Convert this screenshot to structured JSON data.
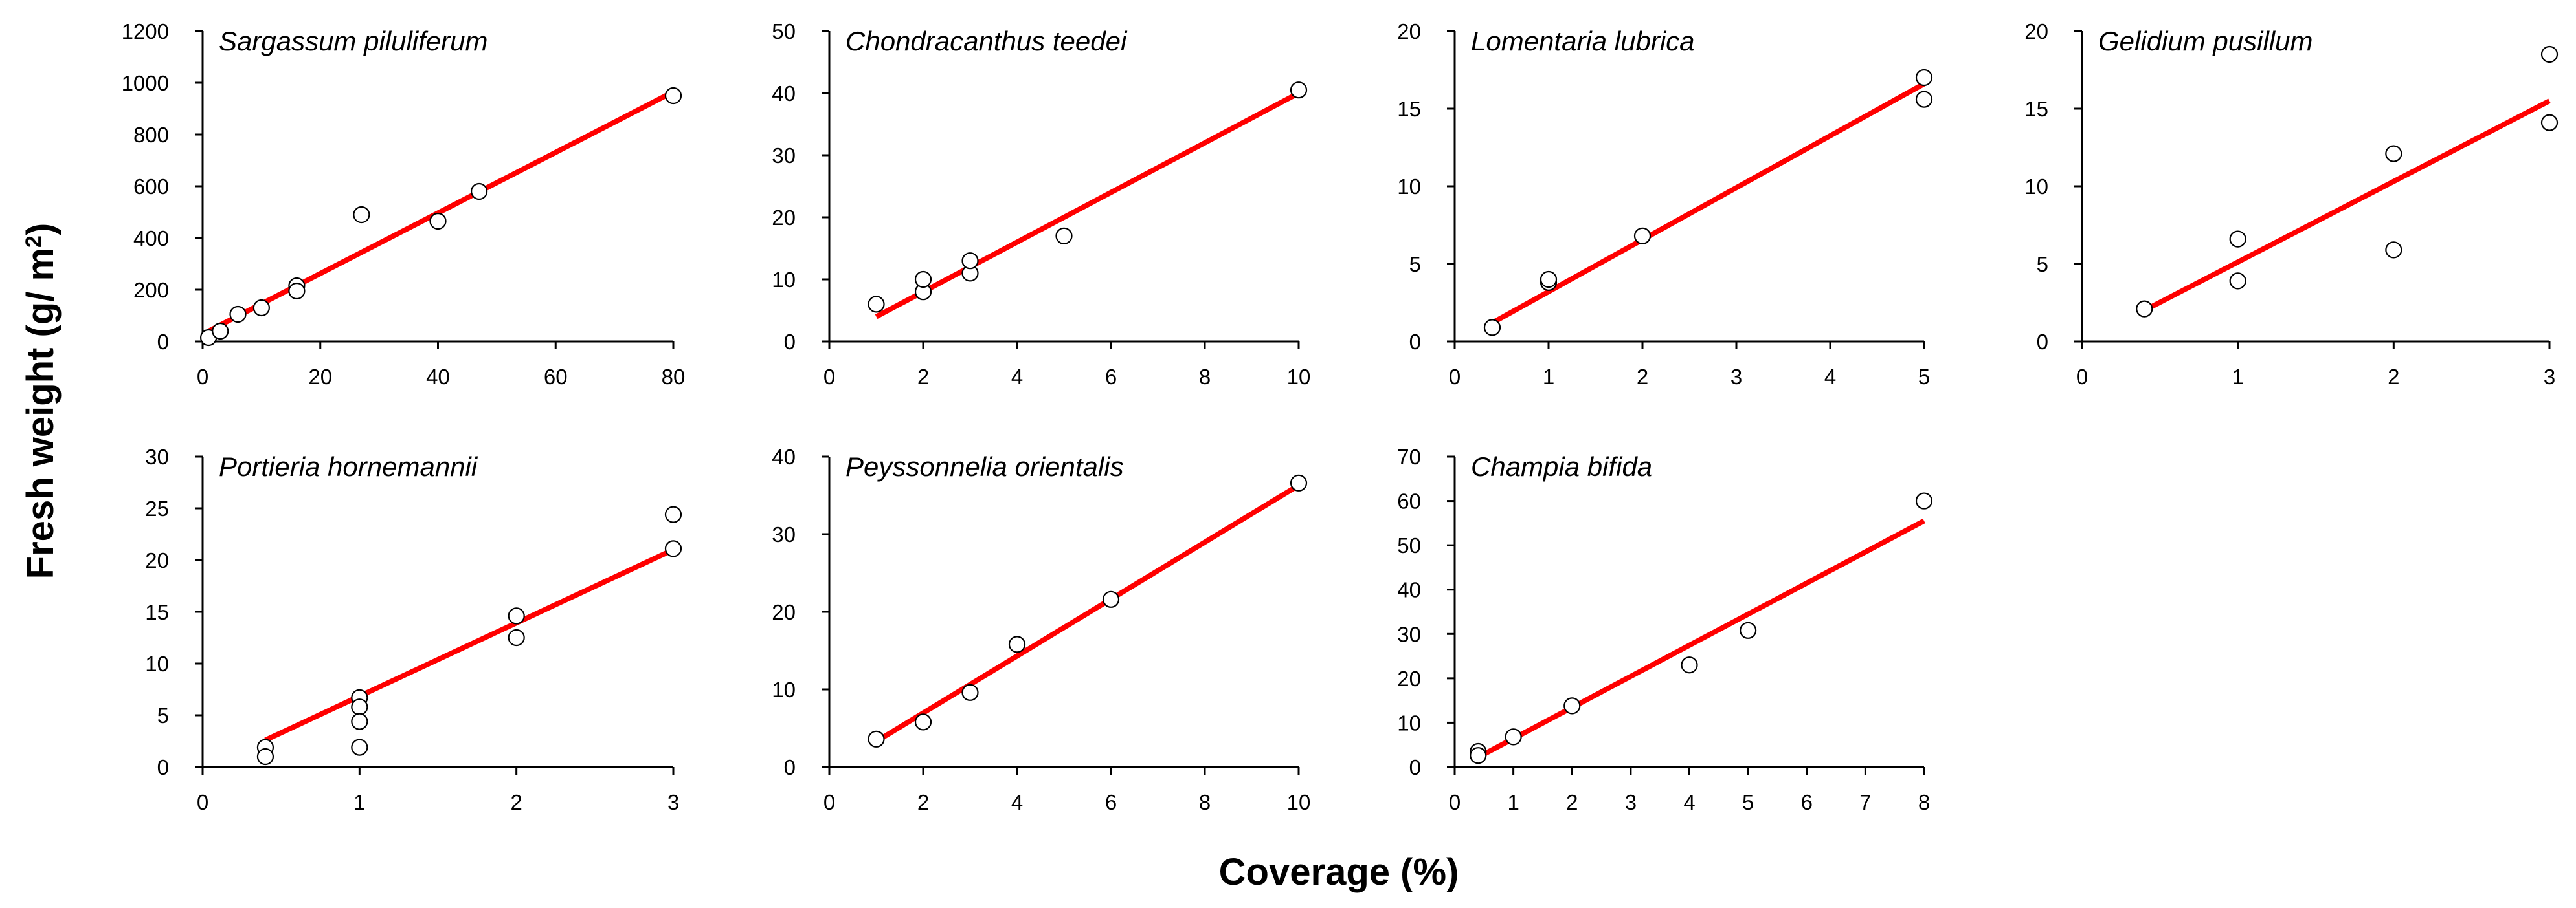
{
  "figure": {
    "ylabel_main": "Fresh weight (g/ m",
    "ylabel_sup": "2",
    "ylabel_close": ")",
    "xlabel": "Coverage (%)"
  },
  "chart_data": [
    {
      "type": "scatter",
      "title": "Sargassum piluliferum",
      "xlim": [
        0,
        80
      ],
      "xticks": [
        0,
        20,
        40,
        60,
        80
      ],
      "ylim": [
        0,
        1200
      ],
      "yticks": [
        0,
        200,
        400,
        600,
        800,
        1000,
        1200
      ],
      "points": [
        [
          1,
          15
        ],
        [
          3,
          40
        ],
        [
          6,
          105
        ],
        [
          10,
          130
        ],
        [
          16,
          215
        ],
        [
          16,
          195
        ],
        [
          27,
          490
        ],
        [
          40,
          465
        ],
        [
          47,
          580
        ],
        [
          80,
          950
        ]
      ],
      "fit_line": [
        [
          1,
          40
        ],
        [
          80,
          965
        ]
      ],
      "fit_color": "#ff0000"
    },
    {
      "type": "scatter",
      "title": "Chondracanthus teedei",
      "xlim": [
        0,
        10
      ],
      "xticks": [
        0,
        2,
        4,
        6,
        8,
        10
      ],
      "ylim": [
        0,
        50
      ],
      "yticks": [
        0,
        10,
        20,
        30,
        40,
        50
      ],
      "points": [
        [
          1,
          6
        ],
        [
          2,
          8
        ],
        [
          2,
          10
        ],
        [
          3,
          11
        ],
        [
          3,
          13
        ],
        [
          5,
          17
        ],
        [
          10,
          40.5
        ]
      ],
      "fit_line": [
        [
          1,
          4
        ],
        [
          10,
          40
        ]
      ],
      "fit_color": "#ff0000"
    },
    {
      "type": "scatter",
      "title": "Lomentaria lubrica",
      "xlim": [
        0,
        5
      ],
      "xticks": [
        0,
        1,
        2,
        3,
        4,
        5
      ],
      "ylim": [
        0,
        20
      ],
      "yticks": [
        0,
        5,
        10,
        15,
        20
      ],
      "points": [
        [
          0.4,
          0.9
        ],
        [
          1,
          3.8
        ],
        [
          1,
          4.0
        ],
        [
          2,
          6.8
        ],
        [
          5,
          17
        ],
        [
          5,
          15.6
        ]
      ],
      "fit_line": [
        [
          0.4,
          1.2
        ],
        [
          5,
          16.6
        ]
      ],
      "fit_color": "#ff0000"
    },
    {
      "type": "scatter",
      "title": "Gelidium pusillum",
      "xlim": [
        0,
        3
      ],
      "xticks": [
        0,
        1,
        2,
        3
      ],
      "ylim": [
        0,
        20
      ],
      "yticks": [
        0,
        5,
        10,
        15,
        20
      ],
      "points": [
        [
          0.4,
          2.1
        ],
        [
          1,
          6.6
        ],
        [
          1,
          3.9
        ],
        [
          2,
          12.1
        ],
        [
          2,
          5.9
        ],
        [
          3,
          18.5
        ],
        [
          3,
          14.1
        ]
      ],
      "fit_line": [
        [
          0.4,
          2.0
        ],
        [
          3,
          15.5
        ]
      ],
      "fit_color": "#ff0000"
    },
    {
      "type": "scatter",
      "title": "Portieria hornemannii",
      "xlim": [
        0,
        3
      ],
      "xticks": [
        0,
        1,
        2,
        3
      ],
      "ylim": [
        0,
        30
      ],
      "yticks": [
        0,
        5,
        10,
        15,
        20,
        25,
        30
      ],
      "points": [
        [
          0.4,
          1.9
        ],
        [
          0.4,
          1.0
        ],
        [
          1,
          6.7
        ],
        [
          1,
          5.8
        ],
        [
          1,
          4.4
        ],
        [
          1,
          1.9
        ],
        [
          2,
          14.6
        ],
        [
          2,
          12.5
        ],
        [
          3,
          24.4
        ],
        [
          3,
          21.1
        ]
      ],
      "fit_line": [
        [
          0.4,
          2.6
        ],
        [
          3,
          21.0
        ]
      ],
      "fit_color": "#ff0000"
    },
    {
      "type": "scatter",
      "title": "Peyssonnelia orientalis",
      "xlim": [
        0,
        10
      ],
      "xticks": [
        0,
        2,
        4,
        6,
        8,
        10
      ],
      "ylim": [
        0,
        40
      ],
      "yticks": [
        0,
        10,
        20,
        30,
        40
      ],
      "points": [
        [
          1,
          3.6
        ],
        [
          2,
          5.8
        ],
        [
          3,
          9.6
        ],
        [
          4,
          15.8
        ],
        [
          6,
          21.6
        ],
        [
          10,
          36.6
        ]
      ],
      "fit_line": [
        [
          1,
          3.3
        ],
        [
          10,
          36.3
        ]
      ],
      "fit_color": "#ff0000"
    },
    {
      "type": "scatter",
      "title": "Champia bifida",
      "xlim": [
        0,
        8
      ],
      "xticks": [
        0,
        1,
        2,
        3,
        4,
        5,
        6,
        7,
        8
      ],
      "ylim": [
        0,
        70
      ],
      "yticks": [
        0,
        10,
        20,
        30,
        40,
        50,
        60,
        70
      ],
      "points": [
        [
          0.4,
          3.5
        ],
        [
          0.4,
          2.6
        ],
        [
          1,
          6.8
        ],
        [
          2,
          13.8
        ],
        [
          4,
          23.0
        ],
        [
          5,
          30.8
        ],
        [
          8,
          60.0
        ]
      ],
      "fit_line": [
        [
          0.4,
          2.2
        ],
        [
          8,
          55.5
        ]
      ],
      "fit_color": "#ff0000"
    }
  ]
}
